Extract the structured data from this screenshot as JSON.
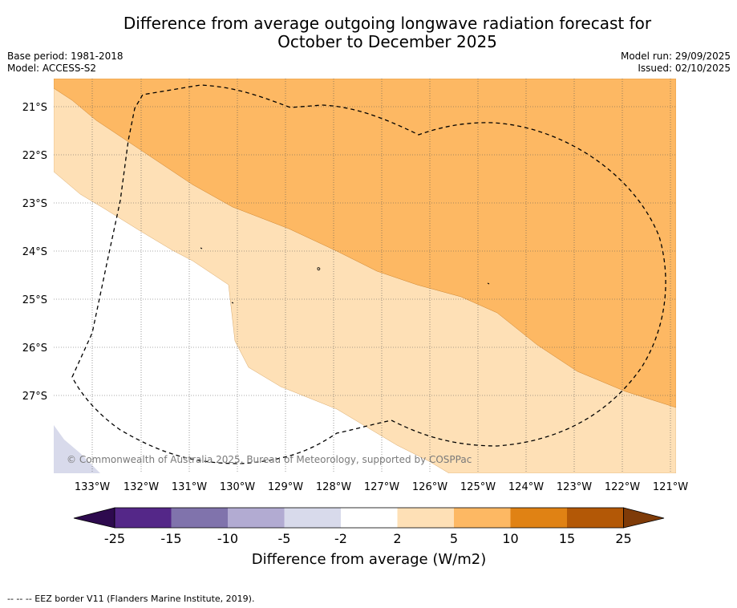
{
  "header": {
    "title_line1": "Difference from average outgoing longwave radiation forecast for",
    "title_line2": "October to December 2025",
    "base_period": "Base period: 1981-2018",
    "model": "Model: ACCESS-S2",
    "model_run": "Model run: 29/09/2025",
    "issued": "Issued: 02/10/2025"
  },
  "map": {
    "lat_labels": [
      "21°S",
      "22°S",
      "23°S",
      "24°S",
      "25°S",
      "26°S",
      "27°S"
    ],
    "lon_labels": [
      "133°W",
      "132°W",
      "131°W",
      "130°W",
      "129°W",
      "128°W",
      "127°W",
      "126°W",
      "125°W",
      "124°W",
      "123°W",
      "122°W",
      "121°W"
    ],
    "copyright": "© Commonwealth of Australia 2025, Bureau of Meteorology, supported by COSPPac",
    "eez_border": "EEZ border V11"
  },
  "colorbar": {
    "ticks": [
      "-25",
      "-15",
      "-10",
      "-5",
      "-2",
      "2",
      "5",
      "10",
      "15",
      "25"
    ],
    "colors": [
      "#2d0a4e",
      "#542788",
      "#8073ac",
      "#b2abd2",
      "#d8daeb",
      "#ffffff",
      "#fee0b6",
      "#fdb863",
      "#e08214",
      "#b35806",
      "#7f3b08"
    ],
    "label": "Difference from average (W/m2)"
  },
  "footer": {
    "legend_text": "-- -- -- EEZ border V11 (Flanders Marine Institute, 2019)."
  }
}
